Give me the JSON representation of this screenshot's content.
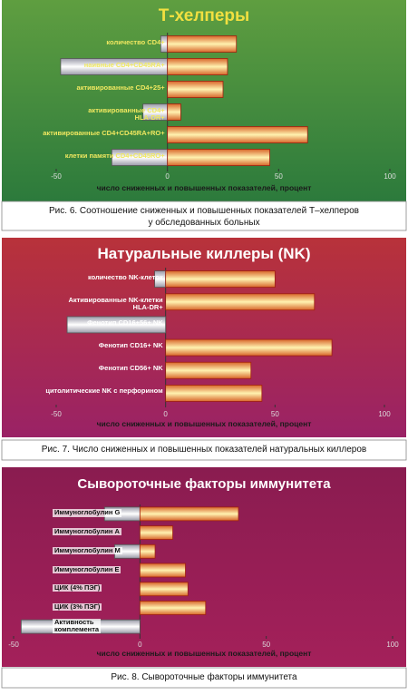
{
  "chart_data": [
    {
      "type": "bar",
      "orientation": "horizontal",
      "title": "Т-хелперы",
      "categories": [
        "количество CD4+",
        "наивные CD4+CD45RA+",
        "активированные CD4+25+",
        "активированные CD4+\nHLA-DR+",
        "активированные CD4+CD45RA+RO+",
        "клетки памяти CD4+CD45RO+"
      ],
      "series": [
        {
          "color": "#e8e8e8",
          "values": [
            -3,
            -48,
            0,
            -11,
            0,
            -25
          ]
        },
        {
          "color": "#f0a040",
          "values": [
            31,
            27,
            25,
            6,
            63,
            46
          ]
        }
      ],
      "xlim": [
        -50,
        100
      ],
      "xticks": [
        -50,
        0,
        50,
        100
      ],
      "xlabel": "число сниженных и повышенных показателей, процент",
      "caption": "Рис. 6. Соотношение сниженных и повышенных показателей Т–хелперов\nу обследованных больных"
    },
    {
      "type": "bar",
      "orientation": "horizontal",
      "title": "Натуральные киллеры (NK)",
      "categories": [
        "количество NK-клеток",
        "Активированные NK-клетки\nHLA-DR+",
        "Фенотип CD16+56+ NK",
        "Фенотип CD16+ NK",
        "Фенотип CD56+ NK",
        "цитолитические NK с перфорином"
      ],
      "series": [
        {
          "color": "#e8e8e8",
          "values": [
            -5,
            0,
            -45,
            0,
            0,
            0
          ]
        },
        {
          "color": "#f0a040",
          "values": [
            50,
            68,
            0,
            76,
            39,
            44
          ]
        }
      ],
      "xlim": [
        -50,
        100
      ],
      "xticks": [
        -50,
        0,
        50,
        100
      ],
      "xlabel": "число сниженных и повышенных показателей, процент",
      "caption": "Рис. 7. Число сниженных и повышенных показателей натуральных киллеров"
    },
    {
      "type": "bar",
      "orientation": "horizontal",
      "title": "Сывороточные факторы иммунитета",
      "categories": [
        "Иммуноглобулин G",
        "Иммуноглобулин А",
        "Иммуноглобулин М",
        "Иммуноглобулин Е",
        "ЦИК (4% ПЭГ)",
        "ЦИК (3% ПЭГ)",
        "Активность\nкомплемента"
      ],
      "series": [
        {
          "color": "#e8e8e8",
          "values": [
            -14,
            0,
            -10,
            0,
            0,
            0,
            -47
          ]
        },
        {
          "color": "#f0a040",
          "values": [
            39,
            13,
            6,
            18,
            19,
            26,
            0
          ]
        }
      ],
      "xlim": [
        -50,
        100
      ],
      "xticks": [
        -50,
        0,
        50,
        100
      ],
      "xlabel": "число сниженных и повышенных показателей, процент",
      "caption": "Рис. 8. Сывороточные факторы иммунитета"
    }
  ]
}
